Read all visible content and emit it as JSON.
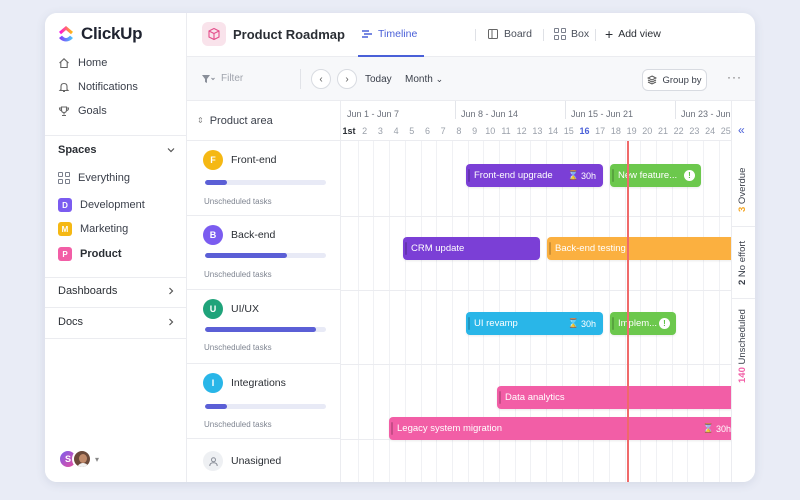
{
  "app": {
    "logo_text": "ClickUp"
  },
  "sidebar": {
    "nav": [
      {
        "label": "Home",
        "icon": "home-icon"
      },
      {
        "label": "Notifications",
        "icon": "bell-icon"
      },
      {
        "label": "Goals",
        "icon": "trophy-icon"
      }
    ],
    "spaces_label": "Spaces",
    "spaces": [
      {
        "label": "Everything",
        "letter": "",
        "color": ""
      },
      {
        "label": "Development",
        "letter": "D",
        "color": "#7b5cf0"
      },
      {
        "label": "Marketing",
        "letter": "M",
        "color": "#f5b814"
      },
      {
        "label": "Product",
        "letter": "P",
        "color": "#f25ea6"
      }
    ],
    "dashboards_label": "Dashboards",
    "docs_label": "Docs",
    "user_initial": "S"
  },
  "header": {
    "title": "Product Roadmap",
    "tabs": [
      {
        "label": "Timeline",
        "active": true
      },
      {
        "label": "Board",
        "active": false
      },
      {
        "label": "Box",
        "active": false
      }
    ],
    "add_view": "Add view"
  },
  "toolbar": {
    "filter_placeholder": "Filter",
    "today": "Today",
    "month": "Month",
    "group_by": "Group by"
  },
  "timeline": {
    "column_header": "Product area",
    "weeks": [
      "Jun 1 - Jun 7",
      "Jun 8 - Jun 14",
      "Jun 15 - Jun 21",
      "Jun 23 - Jun"
    ],
    "days": [
      "1st",
      "2",
      "3",
      "4",
      "5",
      "6",
      "7",
      "8",
      "9",
      "10",
      "11",
      "12",
      "13",
      "14",
      "15",
      "16",
      "17",
      "18",
      "19",
      "20",
      "21",
      "22",
      "23",
      "24",
      "25"
    ],
    "today_day": "16",
    "rows": [
      {
        "label": "Front-end",
        "letter": "F",
        "color": "#f5b814",
        "progress": 0.18,
        "unscheduled": "Unscheduled tasks"
      },
      {
        "label": "Back-end",
        "letter": "B",
        "color": "#7b5cf0",
        "progress": 0.68,
        "unscheduled": "Unscheduled tasks"
      },
      {
        "label": "UI/UX",
        "letter": "U",
        "color": "#1fa37a",
        "progress": 0.92,
        "unscheduled": "Unscheduled tasks"
      },
      {
        "label": "Integrations",
        "letter": "I",
        "color": "#29b6e8",
        "progress": 0.18,
        "unscheduled": "Unscheduled tasks"
      }
    ],
    "unassigned_label": "Unasigned",
    "bars": {
      "frontend_upgrade": {
        "label": "Front-end upgrade",
        "estimate": "30h",
        "color": "#7b3fd6"
      },
      "new_feature": {
        "label": "New feature...",
        "color": "#6cc84d"
      },
      "crm_update": {
        "label": "CRM update",
        "color": "#7b3fd6"
      },
      "backend_testing": {
        "label": "Back-end testing",
        "color": "#fbb040"
      },
      "ui_revamp": {
        "label": "UI revamp",
        "estimate": "30h",
        "color": "#29b6e8"
      },
      "implem": {
        "label": "Implem...",
        "color": "#6cc84d"
      },
      "data_analytics": {
        "label": "Data analytics",
        "color": "#f25ea6"
      },
      "legacy_migration": {
        "label": "Legacy system migration",
        "estimate": "30h",
        "color": "#f25ea6"
      }
    }
  },
  "status": [
    {
      "count": "3",
      "label": "Overdue",
      "color": "#f5a623"
    },
    {
      "count": "2",
      "label": "No effort",
      "color": "#3a3f4a"
    },
    {
      "count": "140",
      "label": "Unscheduled",
      "color": "#f25ea6"
    }
  ]
}
